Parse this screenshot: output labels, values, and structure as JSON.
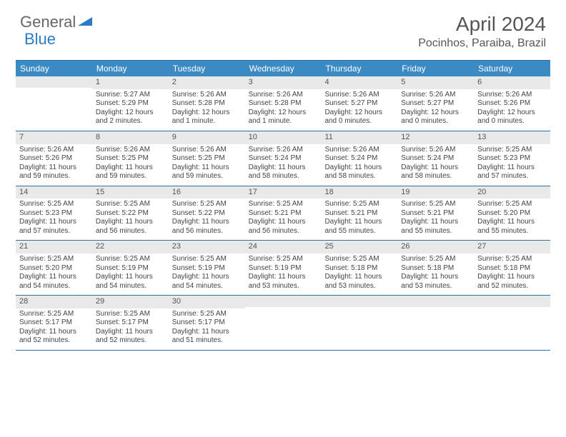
{
  "brand": {
    "part1": "General",
    "part2": "Blue",
    "logo_color": "#2b7cc4"
  },
  "title": "April 2024",
  "location": "Pocinhos, Paraiba, Brazil",
  "colors": {
    "header_bg": "#3b8ac4",
    "header_text": "#ffffff",
    "border": "#2d6da8",
    "daynum_bg": "#e9e9e9",
    "text": "#444444"
  },
  "day_names": [
    "Sunday",
    "Monday",
    "Tuesday",
    "Wednesday",
    "Thursday",
    "Friday",
    "Saturday"
  ],
  "weeks": [
    [
      null,
      {
        "n": "1",
        "sr": "5:27 AM",
        "ss": "5:29 PM",
        "dl": "12 hours and 2 minutes."
      },
      {
        "n": "2",
        "sr": "5:26 AM",
        "ss": "5:28 PM",
        "dl": "12 hours and 1 minute."
      },
      {
        "n": "3",
        "sr": "5:26 AM",
        "ss": "5:28 PM",
        "dl": "12 hours and 1 minute."
      },
      {
        "n": "4",
        "sr": "5:26 AM",
        "ss": "5:27 PM",
        "dl": "12 hours and 0 minutes."
      },
      {
        "n": "5",
        "sr": "5:26 AM",
        "ss": "5:27 PM",
        "dl": "12 hours and 0 minutes."
      },
      {
        "n": "6",
        "sr": "5:26 AM",
        "ss": "5:26 PM",
        "dl": "12 hours and 0 minutes."
      }
    ],
    [
      {
        "n": "7",
        "sr": "5:26 AM",
        "ss": "5:26 PM",
        "dl": "11 hours and 59 minutes."
      },
      {
        "n": "8",
        "sr": "5:26 AM",
        "ss": "5:25 PM",
        "dl": "11 hours and 59 minutes."
      },
      {
        "n": "9",
        "sr": "5:26 AM",
        "ss": "5:25 PM",
        "dl": "11 hours and 59 minutes."
      },
      {
        "n": "10",
        "sr": "5:26 AM",
        "ss": "5:24 PM",
        "dl": "11 hours and 58 minutes."
      },
      {
        "n": "11",
        "sr": "5:26 AM",
        "ss": "5:24 PM",
        "dl": "11 hours and 58 minutes."
      },
      {
        "n": "12",
        "sr": "5:26 AM",
        "ss": "5:24 PM",
        "dl": "11 hours and 58 minutes."
      },
      {
        "n": "13",
        "sr": "5:25 AM",
        "ss": "5:23 PM",
        "dl": "11 hours and 57 minutes."
      }
    ],
    [
      {
        "n": "14",
        "sr": "5:25 AM",
        "ss": "5:23 PM",
        "dl": "11 hours and 57 minutes."
      },
      {
        "n": "15",
        "sr": "5:25 AM",
        "ss": "5:22 PM",
        "dl": "11 hours and 56 minutes."
      },
      {
        "n": "16",
        "sr": "5:25 AM",
        "ss": "5:22 PM",
        "dl": "11 hours and 56 minutes."
      },
      {
        "n": "17",
        "sr": "5:25 AM",
        "ss": "5:21 PM",
        "dl": "11 hours and 56 minutes."
      },
      {
        "n": "18",
        "sr": "5:25 AM",
        "ss": "5:21 PM",
        "dl": "11 hours and 55 minutes."
      },
      {
        "n": "19",
        "sr": "5:25 AM",
        "ss": "5:21 PM",
        "dl": "11 hours and 55 minutes."
      },
      {
        "n": "20",
        "sr": "5:25 AM",
        "ss": "5:20 PM",
        "dl": "11 hours and 55 minutes."
      }
    ],
    [
      {
        "n": "21",
        "sr": "5:25 AM",
        "ss": "5:20 PM",
        "dl": "11 hours and 54 minutes."
      },
      {
        "n": "22",
        "sr": "5:25 AM",
        "ss": "5:19 PM",
        "dl": "11 hours and 54 minutes."
      },
      {
        "n": "23",
        "sr": "5:25 AM",
        "ss": "5:19 PM",
        "dl": "11 hours and 54 minutes."
      },
      {
        "n": "24",
        "sr": "5:25 AM",
        "ss": "5:19 PM",
        "dl": "11 hours and 53 minutes."
      },
      {
        "n": "25",
        "sr": "5:25 AM",
        "ss": "5:18 PM",
        "dl": "11 hours and 53 minutes."
      },
      {
        "n": "26",
        "sr": "5:25 AM",
        "ss": "5:18 PM",
        "dl": "11 hours and 53 minutes."
      },
      {
        "n": "27",
        "sr": "5:25 AM",
        "ss": "5:18 PM",
        "dl": "11 hours and 52 minutes."
      }
    ],
    [
      {
        "n": "28",
        "sr": "5:25 AM",
        "ss": "5:17 PM",
        "dl": "11 hours and 52 minutes."
      },
      {
        "n": "29",
        "sr": "5:25 AM",
        "ss": "5:17 PM",
        "dl": "11 hours and 52 minutes."
      },
      {
        "n": "30",
        "sr": "5:25 AM",
        "ss": "5:17 PM",
        "dl": "11 hours and 51 minutes."
      },
      null,
      null,
      null,
      null
    ]
  ],
  "labels": {
    "sunrise": "Sunrise: ",
    "sunset": "Sunset: ",
    "daylight": "Daylight: "
  }
}
